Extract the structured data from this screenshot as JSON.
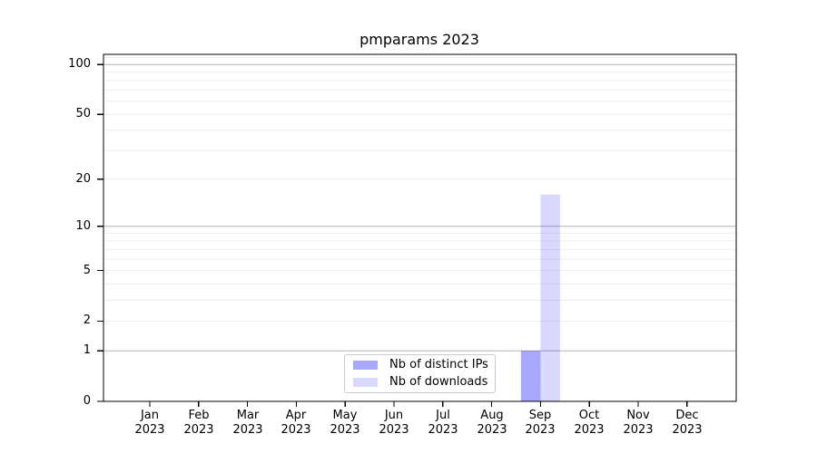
{
  "figure": {
    "background": "#ffffff"
  },
  "chart_data": {
    "type": "bar",
    "title": "pmparams 2023",
    "categories": [
      "Jan 2023",
      "Feb 2023",
      "Mar 2023",
      "Apr 2023",
      "May 2023",
      "Jun 2023",
      "Jul 2023",
      "Aug 2023",
      "Sep 2023",
      "Oct 2023",
      "Nov 2023",
      "Dec 2023"
    ],
    "series": [
      {
        "name": "Nb of distinct IPs",
        "values": [
          0,
          0,
          0,
          0,
          0,
          0,
          0,
          0,
          1,
          0,
          0,
          0
        ],
        "fill": "rgba(0,0,255,0.34)",
        "color_hex": "#a9a9f7"
      },
      {
        "name": "Nb of downloads",
        "values": [
          0,
          0,
          0,
          0,
          0,
          0,
          0,
          0,
          16,
          0,
          0,
          0
        ],
        "fill": "rgba(0,0,255,0.15)",
        "color_hex": "#d9d9f9"
      }
    ],
    "yscale": "log1p",
    "ylim": [
      0,
      115
    ],
    "ytick_values": [
      0,
      1,
      2,
      5,
      10,
      20,
      50,
      100
    ],
    "ytick_labels": [
      "0",
      "1",
      "2",
      "5",
      "10",
      "20",
      "50",
      "100"
    ],
    "major_grid_values": [
      1,
      10,
      100
    ],
    "minor_grid_values": [
      2,
      3,
      4,
      5,
      6,
      7,
      8,
      9,
      20,
      30,
      40,
      50,
      60,
      70,
      80,
      90,
      110
    ],
    "grid": true,
    "legend_position": "lower center",
    "xlabel": "",
    "ylabel": ""
  },
  "colors": {
    "major_grid": "#b4b4b4",
    "minor_grid": "#e9e9e9",
    "spine": "#000000",
    "tick": "#000000",
    "text": "#000000",
    "legend_border": "#cccccc",
    "legend_bg": "rgba(255,255,255,0.8)"
  }
}
